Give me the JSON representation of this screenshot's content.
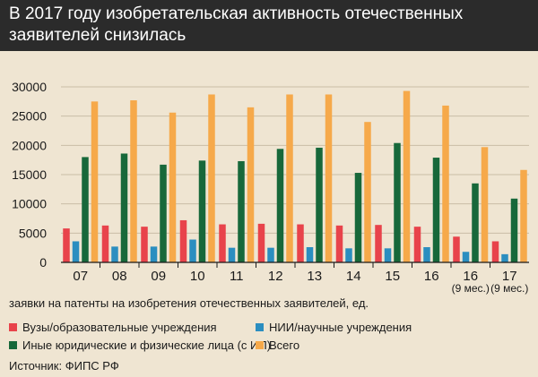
{
  "title": "В 2017 году изобретательская активность отечественных заявителей снизилась",
  "source": "Источник: ФИПС РФ",
  "chart_data": {
    "type": "bar",
    "ylabel": "заявки на патенты на изобретения отечественных заявителей, ед.",
    "ylim": [
      0,
      30000
    ],
    "yticks": [
      0,
      5000,
      10000,
      15000,
      20000,
      25000,
      30000
    ],
    "grid": true,
    "legend_position": "bottom",
    "categories": [
      [
        "07"
      ],
      [
        "08"
      ],
      [
        "09"
      ],
      [
        "10"
      ],
      [
        "11"
      ],
      [
        "12"
      ],
      [
        "13"
      ],
      [
        "14"
      ],
      [
        "15"
      ],
      [
        "16"
      ],
      [
        "16",
        "(9 мес.)"
      ],
      [
        "17",
        "(9 мес.)"
      ]
    ],
    "series": [
      {
        "name": "Вузы/образовательные учреждения",
        "color": "#e8434b",
        "values": [
          5800,
          6300,
          6100,
          7200,
          6500,
          6600,
          6500,
          6300,
          6400,
          6100,
          4400,
          3600
        ]
      },
      {
        "name": "НИИ/научные учреждения",
        "color": "#2b8ec0",
        "values": [
          3600,
          2700,
          2700,
          3900,
          2500,
          2500,
          2600,
          2400,
          2400,
          2600,
          1800,
          1400
        ]
      },
      {
        "name": "Иные юридические и физические лица (с ИП)",
        "color": "#17683a",
        "values": [
          18000,
          18600,
          16700,
          17400,
          17300,
          19400,
          19600,
          15300,
          20400,
          17900,
          13500,
          10900
        ]
      },
      {
        "name": "Всего",
        "color": "#f6a94a",
        "values": [
          27500,
          27700,
          25600,
          28700,
          26500,
          28700,
          28700,
          24000,
          29300,
          26800,
          19700,
          15800
        ]
      }
    ]
  }
}
